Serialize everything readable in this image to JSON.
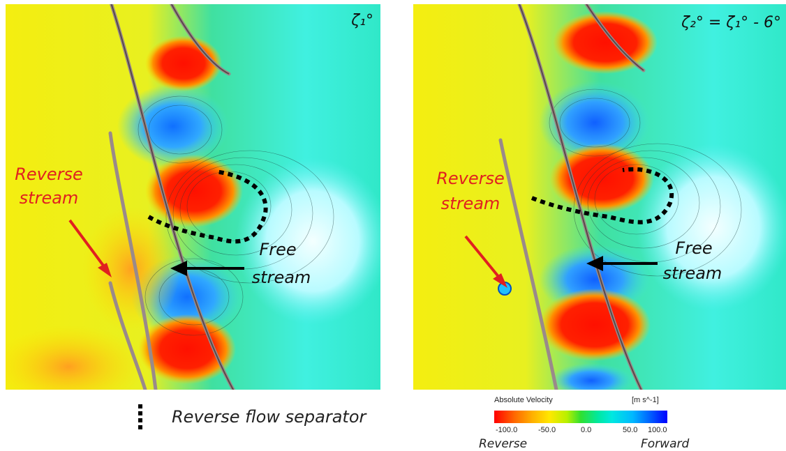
{
  "panels": [
    {
      "angle_label": "ζ₁°",
      "reverse_label_line1": "Reverse",
      "reverse_label_line2": "stream",
      "free_label_line1": "Free",
      "free_label_line2": "stream"
    },
    {
      "angle_label": "ζ₂° = ζ₁° - 6°",
      "reverse_label_line1": "Reverse",
      "reverse_label_line2": "stream",
      "free_label_line1": "Free",
      "free_label_line2": "stream"
    }
  ],
  "separator_legend": {
    "label": "Reverse flow separator",
    "icon": "dotted-line-icon"
  },
  "colorbar": {
    "title": "Absolute Velocity",
    "unit": "[m s^-1]",
    "ticks": [
      "-100.0",
      "-50.0",
      "0.0",
      "50.0",
      "100.0"
    ],
    "min": -100,
    "max": 100,
    "left_end_label": "Reverse",
    "right_end_label": "Forward",
    "colors": [
      "#ff0000",
      "#ff8800",
      "#ffee00",
      "#22dd44",
      "#00e0e0",
      "#0000ff"
    ]
  },
  "colors": {
    "reverse_arrow": "#e02020",
    "free_arrow": "#000000",
    "reverse_text": "#e02020",
    "text": "#111111"
  }
}
